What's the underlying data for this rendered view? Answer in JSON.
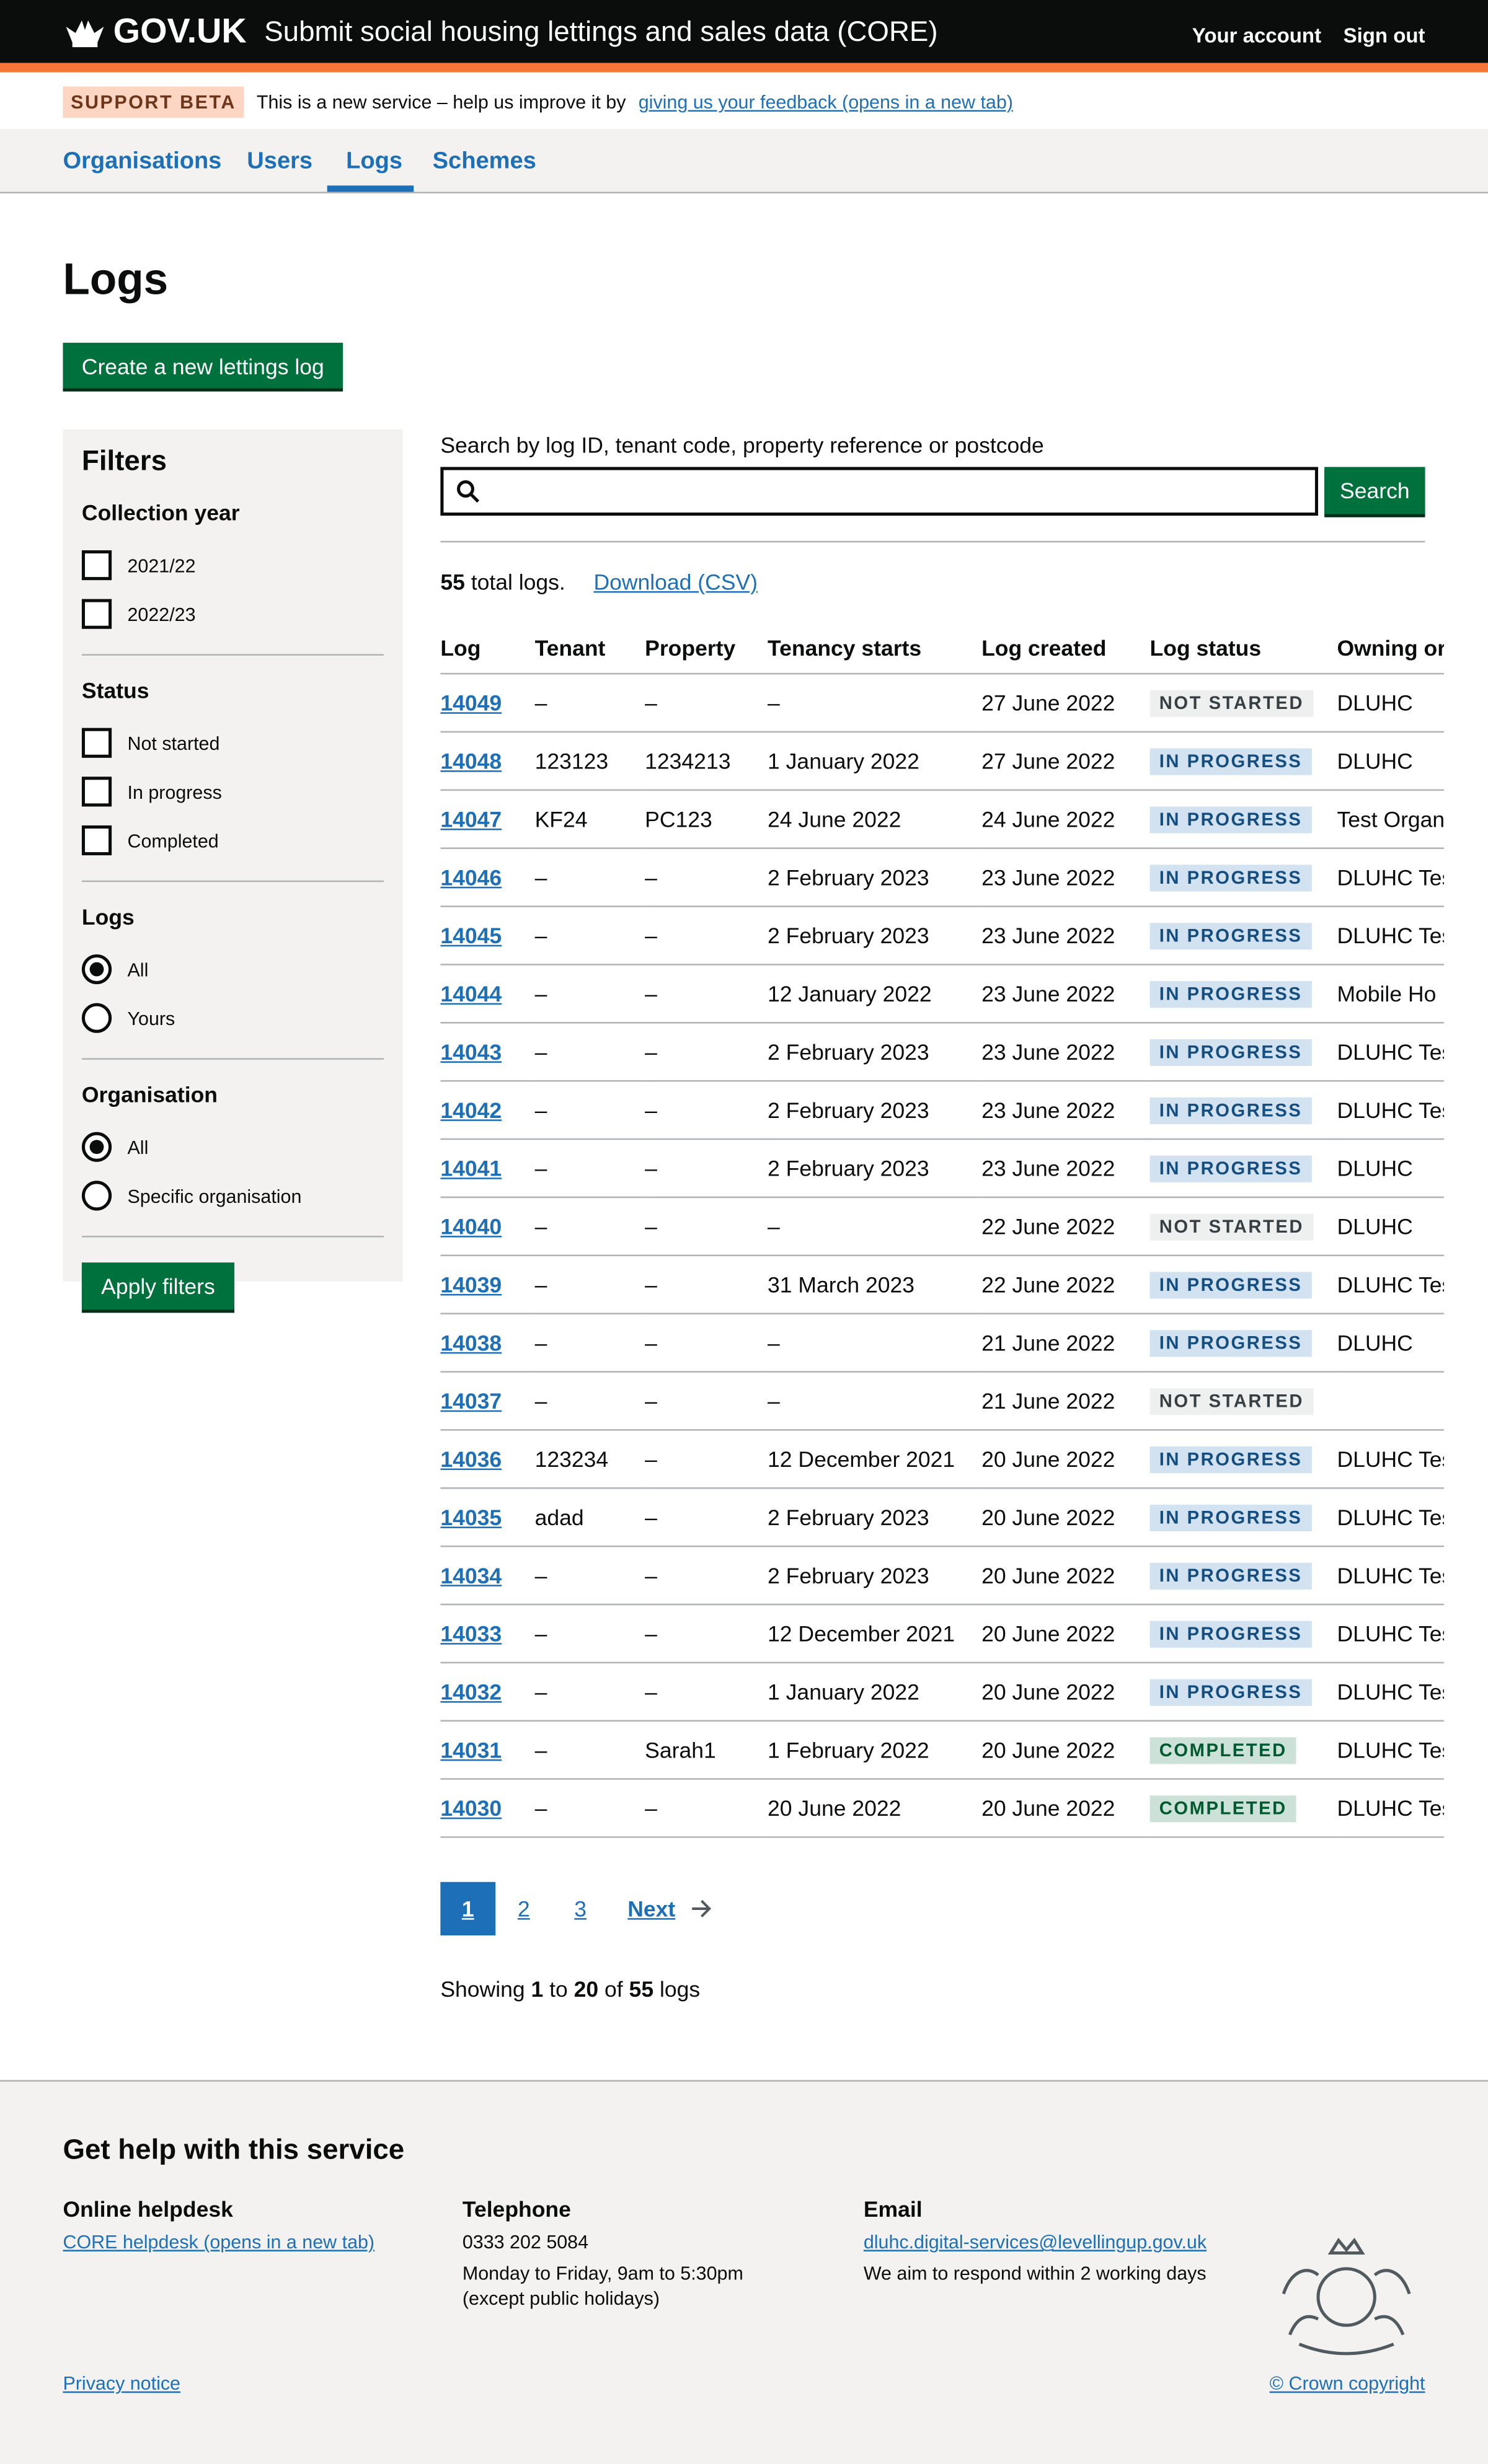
{
  "header": {
    "logo": "GOV.UK",
    "service": "Submit social housing lettings and sales data (CORE)",
    "your_account": "Your account",
    "sign_out": "Sign out"
  },
  "banner": {
    "tag": "SUPPORT BETA",
    "text": "This is a new service – help us improve it by",
    "link": "giving us your feedback (opens in a new tab)"
  },
  "nav": [
    {
      "label": "Organisations"
    },
    {
      "label": "Users"
    },
    {
      "label": "Logs",
      "active": true
    },
    {
      "label": "Schemes"
    }
  ],
  "page_title": "Logs",
  "create_button": "Create a new lettings log",
  "filters": {
    "title": "Filters",
    "collection_year": {
      "label": "Collection year",
      "options": [
        "2021/22",
        "2022/23"
      ]
    },
    "status": {
      "label": "Status",
      "options": [
        "Not started",
        "In progress",
        "Completed"
      ]
    },
    "logs": {
      "label": "Logs",
      "options": [
        "All",
        "Yours"
      ],
      "selected": "All"
    },
    "organisation": {
      "label": "Organisation",
      "options": [
        "All",
        "Specific organisation"
      ],
      "selected": "All"
    },
    "apply": "Apply filters"
  },
  "search": {
    "label": "Search by log ID, tenant code, property reference or postcode",
    "value": "",
    "button": "Search"
  },
  "summary": {
    "count": "55",
    "text": " total logs.",
    "download": "Download (CSV)"
  },
  "colors": {
    "not_started_bg": "#eeefef",
    "not_started_fg": "#383f43",
    "in_progress_bg": "#d2e2f1",
    "in_progress_fg": "#144e81",
    "completed_bg": "#cce2d8",
    "completed_fg": "#005a30"
  },
  "table": {
    "headers": [
      "Log",
      "Tenant",
      "Property",
      "Tenancy starts",
      "Log created",
      "Log status",
      "Owning or"
    ],
    "rows": [
      [
        "14049",
        "–",
        "–",
        "–",
        "27 June 2022",
        "NOT STARTED",
        "DLUHC"
      ],
      [
        "14048",
        "123123",
        "1234213",
        "1 January 2022",
        "27 June 2022",
        "IN PROGRESS",
        "DLUHC"
      ],
      [
        "14047",
        "KF24",
        "PC123",
        "24 June 2022",
        "24 June 2022",
        "IN PROGRESS",
        "Test Organ"
      ],
      [
        "14046",
        "–",
        "–",
        "2 February 2023",
        "23 June 2022",
        "IN PROGRESS",
        "DLUHC Tes"
      ],
      [
        "14045",
        "–",
        "–",
        "2 February 2023",
        "23 June 2022",
        "IN PROGRESS",
        "DLUHC Tes"
      ],
      [
        "14044",
        "–",
        "–",
        "12 January 2022",
        "23 June 2022",
        "IN PROGRESS",
        "Mobile Ho"
      ],
      [
        "14043",
        "–",
        "–",
        "2 February 2023",
        "23 June 2022",
        "IN PROGRESS",
        "DLUHC Tes"
      ],
      [
        "14042",
        "–",
        "–",
        "2 February 2023",
        "23 June 2022",
        "IN PROGRESS",
        "DLUHC Tes"
      ],
      [
        "14041",
        "–",
        "–",
        "2 February 2023",
        "23 June 2022",
        "IN PROGRESS",
        "DLUHC"
      ],
      [
        "14040",
        "–",
        "–",
        "–",
        "22 June 2022",
        "NOT STARTED",
        "DLUHC"
      ],
      [
        "14039",
        "–",
        "–",
        "31 March 2023",
        "22 June 2022",
        "IN PROGRESS",
        "DLUHC Tes"
      ],
      [
        "14038",
        "–",
        "–",
        "–",
        "21 June 2022",
        "IN PROGRESS",
        "DLUHC"
      ],
      [
        "14037",
        "–",
        "–",
        "–",
        "21 June 2022",
        "NOT STARTED",
        ""
      ],
      [
        "14036",
        "123234",
        "–",
        "12 December 2021",
        "20 June 2022",
        "IN PROGRESS",
        "DLUHC Tes"
      ],
      [
        "14035",
        "adad",
        "–",
        "2 February 2023",
        "20 June 2022",
        "IN PROGRESS",
        "DLUHC Tes"
      ],
      [
        "14034",
        "–",
        "–",
        "2 February 2023",
        "20 June 2022",
        "IN PROGRESS",
        "DLUHC Tes"
      ],
      [
        "14033",
        "–",
        "–",
        "12 December 2021",
        "20 June 2022",
        "IN PROGRESS",
        "DLUHC Tes"
      ],
      [
        "14032",
        "–",
        "–",
        "1 January 2022",
        "20 June 2022",
        "IN PROGRESS",
        "DLUHC Tes"
      ],
      [
        "14031",
        "–",
        "Sarah1",
        "1 February 2022",
        "20 June 2022",
        "COMPLETED",
        "DLUHC Tes"
      ],
      [
        "14030",
        "–",
        "–",
        "20 June 2022",
        "20 June 2022",
        "COMPLETED",
        "DLUHC Tes"
      ]
    ]
  },
  "pagination": {
    "current": "1",
    "pages": [
      "2",
      "3"
    ],
    "next": "Next"
  },
  "showing": {
    "a": "Showing ",
    "from": "1",
    "b": " to ",
    "to": "20",
    "c": " of ",
    "total": "55",
    "d": " logs"
  },
  "footer": {
    "title": "Get help with this service",
    "helpdesk": {
      "title": "Online helpdesk",
      "link": "CORE helpdesk (opens in a new tab)"
    },
    "telephone": {
      "title": "Telephone",
      "number": "0333 202 5084",
      "hours": "Monday to Friday, 9am to 5:30pm",
      "note": "(except public holidays)"
    },
    "email": {
      "title": "Email",
      "address": "dluhc.digital-services@levellingup.gov.uk",
      "note": "We aim to respond within 2 working days"
    },
    "privacy": "Privacy notice",
    "copyright": "© Crown copyright"
  }
}
